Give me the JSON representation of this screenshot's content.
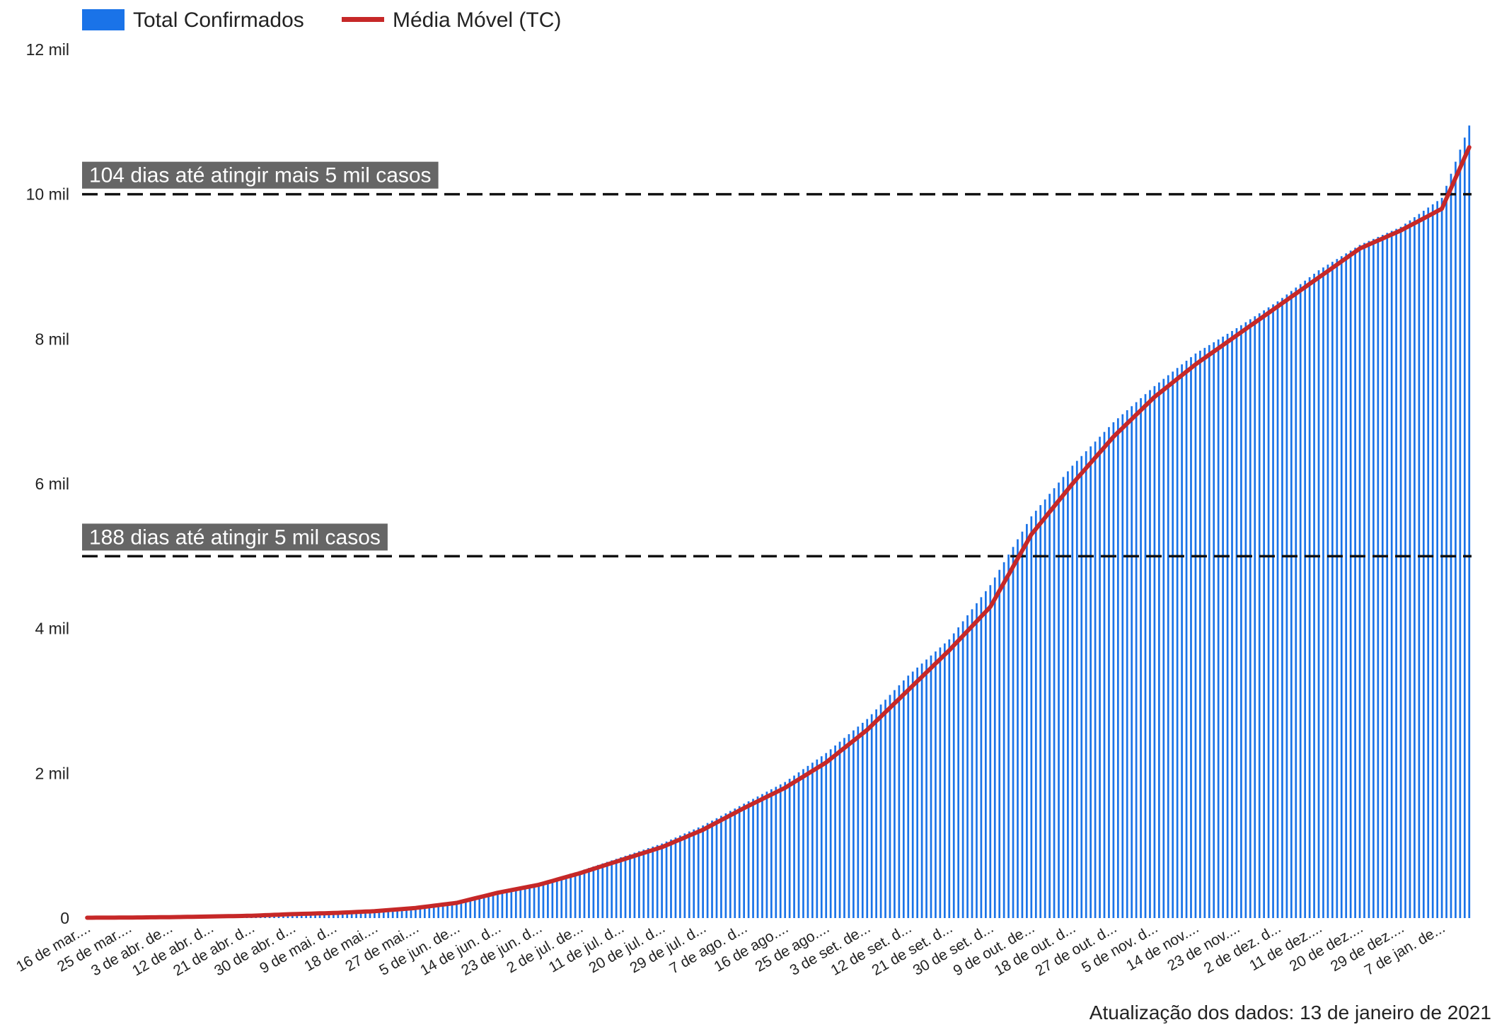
{
  "chart_data": {
    "type": "bar",
    "legend": {
      "position": "top-left",
      "items": [
        {
          "name": "Total Confirmados",
          "color": "#1a73e8",
          "kind": "bar"
        },
        {
          "name": "Média Móvel (TC)",
          "color": "#c62828",
          "kind": "line"
        }
      ]
    },
    "y_axis": {
      "min": 0,
      "max": 12000,
      "ticks": [
        {
          "value": 0,
          "label": "0"
        },
        {
          "value": 2000,
          "label": "2 mil"
        },
        {
          "value": 4000,
          "label": "4 mil"
        },
        {
          "value": 6000,
          "label": "6 mil"
        },
        {
          "value": 8000,
          "label": "8 mil"
        },
        {
          "value": 10000,
          "label": "10 mil"
        },
        {
          "value": 12000,
          "label": "12 mil"
        }
      ]
    },
    "x_axis": {
      "start_date": "2020-03-16",
      "end_date": "2021-01-13",
      "tick_labels": [
        "16 de mar....",
        "25 de mar....",
        "3 de abr. de...",
        "12 de abr. d...",
        "21 de abr. d...",
        "30 de abr. d...",
        "9 de mai. d...",
        "18 de mai....",
        "27 de mai....",
        "5 de jun. de...",
        "14 de jun. d...",
        "23 de jun. d...",
        "2 de jul. de...",
        "11 de jul. d...",
        "20 de jul. d...",
        "29 de jul. d...",
        "7 de ago. d...",
        "16 de ago....",
        "25 de ago....",
        "3 de set. de...",
        "12 de set. d...",
        "21 de set. d...",
        "30 de set. d...",
        "9 de out. de...",
        "18 de out. d...",
        "27 de out. d...",
        "5 de nov. d...",
        "14 de nov....",
        "23 de nov....",
        "2 de dez. d...",
        "11 de dez....",
        "20 de dez....",
        "29 de dez....",
        "7 de jan. de..."
      ]
    },
    "series": [
      {
        "name": "Total Confirmados",
        "type": "bar",
        "color": "#1a73e8",
        "keypoints": [
          {
            "date": "2020-03-16",
            "value": 5
          },
          {
            "date": "2020-03-25",
            "value": 8
          },
          {
            "date": "2020-04-03",
            "value": 15
          },
          {
            "date": "2020-04-12",
            "value": 25
          },
          {
            "date": "2020-04-21",
            "value": 35
          },
          {
            "date": "2020-04-30",
            "value": 55
          },
          {
            "date": "2020-05-09",
            "value": 75
          },
          {
            "date": "2020-05-18",
            "value": 100
          },
          {
            "date": "2020-05-27",
            "value": 150
          },
          {
            "date": "2020-06-05",
            "value": 230
          },
          {
            "date": "2020-06-14",
            "value": 370
          },
          {
            "date": "2020-06-23",
            "value": 480
          },
          {
            "date": "2020-07-02",
            "value": 650
          },
          {
            "date": "2020-07-11",
            "value": 840
          },
          {
            "date": "2020-07-20",
            "value": 1030
          },
          {
            "date": "2020-07-29",
            "value": 1280
          },
          {
            "date": "2020-08-07",
            "value": 1580
          },
          {
            "date": "2020-08-16",
            "value": 1880
          },
          {
            "date": "2020-08-25",
            "value": 2280
          },
          {
            "date": "2020-09-03",
            "value": 2750
          },
          {
            "date": "2020-09-12",
            "value": 3350
          },
          {
            "date": "2020-09-21",
            "value": 3850
          },
          {
            "date": "2020-09-30",
            "value": 4600
          },
          {
            "date": "2020-10-09",
            "value": 5550
          },
          {
            "date": "2020-10-18",
            "value": 6250
          },
          {
            "date": "2020-10-27",
            "value": 6850
          },
          {
            "date": "2020-11-05",
            "value": 7350
          },
          {
            "date": "2020-11-14",
            "value": 7800
          },
          {
            "date": "2020-11-23",
            "value": 8150
          },
          {
            "date": "2020-12-02",
            "value": 8520
          },
          {
            "date": "2020-12-11",
            "value": 8950
          },
          {
            "date": "2020-12-20",
            "value": 9300
          },
          {
            "date": "2020-12-29",
            "value": 9550
          },
          {
            "date": "2021-01-07",
            "value": 9950
          },
          {
            "date": "2021-01-13",
            "value": 10950
          }
        ]
      },
      {
        "name": "Média Móvel (TC)",
        "type": "line",
        "color": "#c62828",
        "keypoints": [
          {
            "date": "2020-03-16",
            "value": 5
          },
          {
            "date": "2020-03-25",
            "value": 7
          },
          {
            "date": "2020-04-03",
            "value": 13
          },
          {
            "date": "2020-04-12",
            "value": 22
          },
          {
            "date": "2020-04-21",
            "value": 32
          },
          {
            "date": "2020-04-30",
            "value": 55
          },
          {
            "date": "2020-05-09",
            "value": 70
          },
          {
            "date": "2020-05-18",
            "value": 95
          },
          {
            "date": "2020-05-27",
            "value": 140
          },
          {
            "date": "2020-06-05",
            "value": 210
          },
          {
            "date": "2020-06-14",
            "value": 350
          },
          {
            "date": "2020-06-23",
            "value": 460
          },
          {
            "date": "2020-07-02",
            "value": 620
          },
          {
            "date": "2020-07-11",
            "value": 800
          },
          {
            "date": "2020-07-20",
            "value": 980
          },
          {
            "date": "2020-07-29",
            "value": 1220
          },
          {
            "date": "2020-08-07",
            "value": 1520
          },
          {
            "date": "2020-08-16",
            "value": 1800
          },
          {
            "date": "2020-08-25",
            "value": 2150
          },
          {
            "date": "2020-09-03",
            "value": 2600
          },
          {
            "date": "2020-09-12",
            "value": 3150
          },
          {
            "date": "2020-09-21",
            "value": 3700
          },
          {
            "date": "2020-09-30",
            "value": 4300
          },
          {
            "date": "2020-10-09",
            "value": 5300
          },
          {
            "date": "2020-10-18",
            "value": 6000
          },
          {
            "date": "2020-10-27",
            "value": 6650
          },
          {
            "date": "2020-11-05",
            "value": 7200
          },
          {
            "date": "2020-11-14",
            "value": 7650
          },
          {
            "date": "2020-11-23",
            "value": 8050
          },
          {
            "date": "2020-12-02",
            "value": 8450
          },
          {
            "date": "2020-12-11",
            "value": 8850
          },
          {
            "date": "2020-12-20",
            "value": 9250
          },
          {
            "date": "2020-12-29",
            "value": 9500
          },
          {
            "date": "2021-01-07",
            "value": 9800
          },
          {
            "date": "2021-01-13",
            "value": 10650
          }
        ]
      }
    ],
    "reference_lines": [
      {
        "value": 10000,
        "label": "104 dias até atingir mais 5 mil casos",
        "style": "dashed"
      },
      {
        "value": 5000,
        "label": "188 dias até atingir 5 mil casos",
        "style": "dashed"
      }
    ],
    "footer": "Atualização dos dados:  13 de janeiro de 2021",
    "grid": false
  }
}
